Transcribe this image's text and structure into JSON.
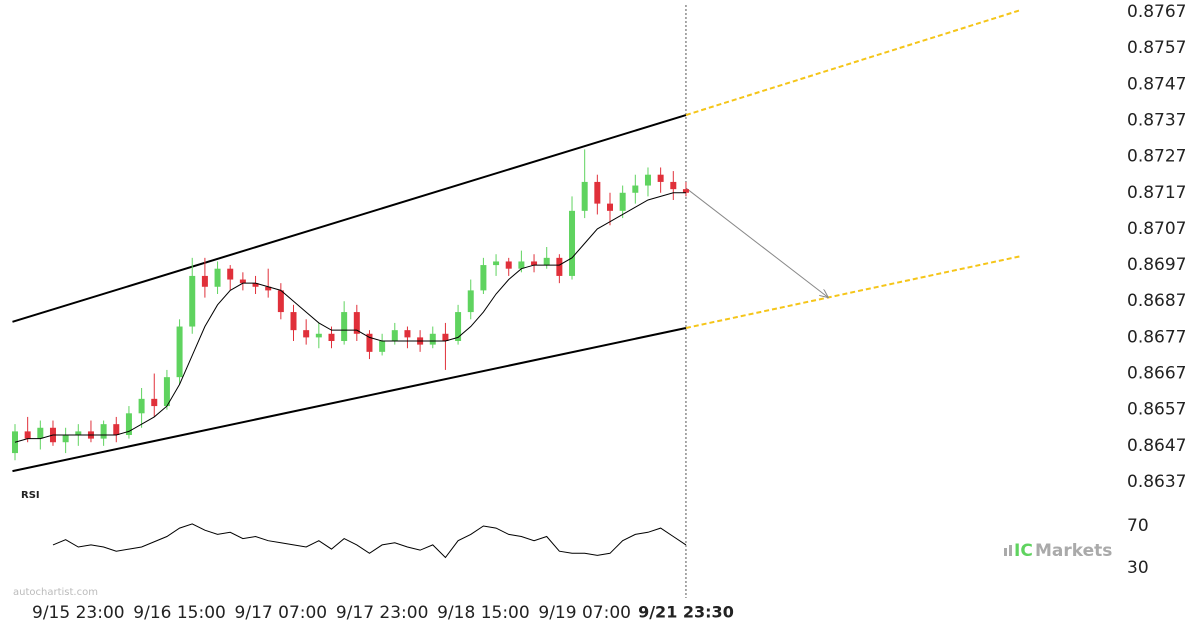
{
  "chart_data": {
    "type": "candlestick",
    "x": [
      -10,
      -8,
      -6,
      -4,
      -2,
      0,
      2,
      4,
      6,
      8,
      10,
      12,
      14,
      16,
      18,
      20,
      22,
      24,
      26,
      28,
      30,
      32,
      34,
      36,
      38,
      40,
      42,
      44,
      46,
      48,
      50,
      52,
      54,
      56,
      58,
      60,
      62,
      64,
      66,
      68,
      70,
      72,
      74,
      76,
      78,
      80,
      82,
      84,
      86,
      88,
      90,
      92,
      94,
      96
    ],
    "ohlc": [
      [
        0.8645,
        0.8653,
        0.8643,
        0.8651
      ],
      [
        0.8651,
        0.8655,
        0.8648,
        0.8649
      ],
      [
        0.8649,
        0.8654,
        0.8646,
        0.8652
      ],
      [
        0.8652,
        0.8654,
        0.8647,
        0.8648
      ],
      [
        0.8648,
        0.8652,
        0.8645,
        0.865
      ],
      [
        0.865,
        0.8653,
        0.8647,
        0.8651
      ],
      [
        0.8651,
        0.8654,
        0.8648,
        0.8649
      ],
      [
        0.8649,
        0.8654,
        0.8647,
        0.8653
      ],
      [
        0.8653,
        0.8655,
        0.8648,
        0.865
      ],
      [
        0.865,
        0.8658,
        0.8649,
        0.8656
      ],
      [
        0.8656,
        0.8663,
        0.8652,
        0.866
      ],
      [
        0.866,
        0.8667,
        0.8655,
        0.8658
      ],
      [
        0.8658,
        0.8668,
        0.8657,
        0.8666
      ],
      [
        0.8666,
        0.8682,
        0.8664,
        0.868
      ],
      [
        0.868,
        0.8699,
        0.8678,
        0.8694
      ],
      [
        0.8694,
        0.8699,
        0.8688,
        0.8691
      ],
      [
        0.8691,
        0.8698,
        0.8689,
        0.8696
      ],
      [
        0.8696,
        0.8697,
        0.869,
        0.8693
      ],
      [
        0.8693,
        0.8695,
        0.869,
        0.8692
      ],
      [
        0.8692,
        0.8694,
        0.8689,
        0.8691
      ],
      [
        0.8691,
        0.8696,
        0.8688,
        0.869
      ],
      [
        0.869,
        0.8692,
        0.8682,
        0.8684
      ],
      [
        0.8684,
        0.8686,
        0.8676,
        0.8679
      ],
      [
        0.8679,
        0.8682,
        0.8675,
        0.8677
      ],
      [
        0.8677,
        0.8681,
        0.8674,
        0.8678
      ],
      [
        0.8678,
        0.868,
        0.8674,
        0.8676
      ],
      [
        0.8676,
        0.8687,
        0.8675,
        0.8684
      ],
      [
        0.8684,
        0.8686,
        0.8676,
        0.8678
      ],
      [
        0.8678,
        0.8679,
        0.8671,
        0.8673
      ],
      [
        0.8673,
        0.8678,
        0.8672,
        0.8676
      ],
      [
        0.8676,
        0.8681,
        0.8675,
        0.8679
      ],
      [
        0.8679,
        0.868,
        0.8674,
        0.8677
      ],
      [
        0.8677,
        0.8679,
        0.8673,
        0.8675
      ],
      [
        0.8675,
        0.868,
        0.8674,
        0.8678
      ],
      [
        0.8678,
        0.8681,
        0.8668,
        0.8676
      ],
      [
        0.8676,
        0.8686,
        0.8675,
        0.8684
      ],
      [
        0.8684,
        0.8693,
        0.8682,
        0.869
      ],
      [
        0.869,
        0.8699,
        0.8689,
        0.8697
      ],
      [
        0.8697,
        0.87,
        0.8694,
        0.8698
      ],
      [
        0.8698,
        0.8699,
        0.8694,
        0.8696
      ],
      [
        0.8696,
        0.8701,
        0.8695,
        0.8698
      ],
      [
        0.8698,
        0.87,
        0.8695,
        0.8697
      ],
      [
        0.8697,
        0.8702,
        0.8696,
        0.8699
      ],
      [
        0.8699,
        0.87,
        0.8692,
        0.8694
      ],
      [
        0.8694,
        0.8716,
        0.8693,
        0.8712
      ],
      [
        0.8712,
        0.8729,
        0.871,
        0.872
      ],
      [
        0.872,
        0.8722,
        0.8711,
        0.8714
      ],
      [
        0.8714,
        0.8717,
        0.8708,
        0.8712
      ],
      [
        0.8712,
        0.8719,
        0.871,
        0.8717
      ],
      [
        0.8717,
        0.8722,
        0.8714,
        0.8719
      ],
      [
        0.8719,
        0.8724,
        0.8716,
        0.8722
      ],
      [
        0.8722,
        0.8724,
        0.8717,
        0.872
      ],
      [
        0.872,
        0.8723,
        0.8715,
        0.8718
      ],
      [
        0.8718,
        0.872,
        0.8716,
        0.8717
      ]
    ],
    "up_color": "#5fd35f",
    "down_color": "#e0303a",
    "ma": [
      0.8648,
      0.8649,
      0.8649,
      0.865,
      0.865,
      0.865,
      0.865,
      0.865,
      0.865,
      0.8651,
      0.8653,
      0.8655,
      0.8658,
      0.8664,
      0.8672,
      0.868,
      0.8686,
      0.869,
      0.8692,
      0.8692,
      0.8691,
      0.869,
      0.8687,
      0.8684,
      0.8681,
      0.8679,
      0.8679,
      0.8679,
      0.8677,
      0.8676,
      0.8676,
      0.8676,
      0.8676,
      0.8676,
      0.8676,
      0.8677,
      0.868,
      0.8684,
      0.8689,
      0.8693,
      0.8696,
      0.8697,
      0.8697,
      0.8697,
      0.8699,
      0.8703,
      0.8707,
      0.8709,
      0.8711,
      0.8713,
      0.8715,
      0.8716,
      0.8717,
      0.8717
    ],
    "overlays": [
      {
        "x": [
          -10.4,
          96
        ],
        "y": [
          0.86813,
          0.87385
        ],
        "color": "#000000",
        "dashed": false
      },
      {
        "x": [
          -10.4,
          96
        ],
        "y": [
          0.864,
          0.86796
        ],
        "color": "#000000",
        "dashed": false
      },
      {
        "x": [
          96,
          149
        ],
        "y": [
          0.87385,
          0.87676
        ],
        "color": "#f5c518",
        "dashed": true
      },
      {
        "x": [
          96,
          149
        ],
        "y": [
          0.86796,
          0.86995
        ],
        "color": "#f5c518",
        "dashed": true
      },
      {
        "x": [
          96,
          118.5
        ],
        "y": [
          0.87183,
          0.8688
        ],
        "color": "#888888",
        "dashed": false,
        "arrow": true
      }
    ],
    "xlim": [
      -10,
      178
    ],
    "xticks": [
      {
        "value": 0,
        "label": "9/15 23:00"
      },
      {
        "value": 16,
        "label": "9/16 15:00"
      },
      {
        "value": 32,
        "label": "9/17 07:00"
      },
      {
        "value": 48,
        "label": "9/17 23:00"
      },
      {
        "value": 64,
        "label": "9/18 15:00"
      },
      {
        "value": 80,
        "label": "9/19 07:00"
      },
      {
        "value": 96,
        "label": "9/21 23:30"
      }
    ],
    "ylim": [
      0.8637,
      0.8767
    ],
    "yticks": [
      0.8767,
      0.8757,
      0.8747,
      0.8737,
      0.8727,
      0.8717,
      0.8707,
      0.8697,
      0.8687,
      0.8677,
      0.8667,
      0.8657,
      0.8647,
      0.8637
    ],
    "rsi": {
      "label": "RSI",
      "ylim": [
        10,
        90
      ],
      "yticks": [
        70,
        30
      ],
      "values": [
        null,
        null,
        null,
        52,
        57,
        50,
        52,
        50,
        46,
        48,
        50,
        55,
        60,
        68,
        72,
        66,
        62,
        64,
        58,
        60,
        56,
        54,
        52,
        50,
        56,
        48,
        58,
        52,
        44,
        52,
        54,
        50,
        47,
        52,
        40,
        56,
        62,
        70,
        68,
        62,
        60,
        56,
        60,
        46,
        44,
        44,
        42,
        44,
        56,
        62,
        64,
        68,
        60,
        52
      ]
    },
    "watermark": "autochartist.com",
    "brand": {
      "prefix": "IC",
      "name": "Markets"
    }
  }
}
